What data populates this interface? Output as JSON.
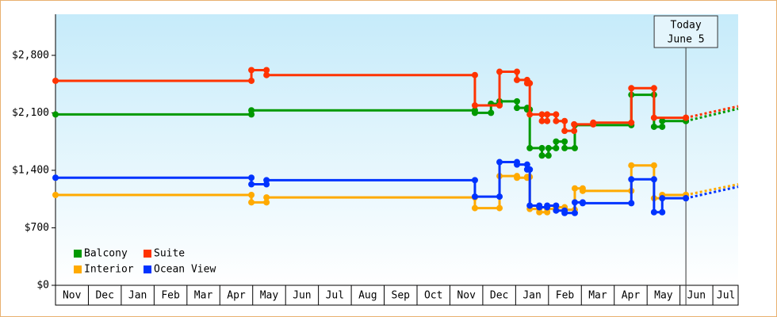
{
  "chart_data": {
    "type": "step-line",
    "xlim": [
      0,
      20.77
    ],
    "xticks": [
      {
        "value": 0.5,
        "label": "Nov"
      },
      {
        "value": 1.5,
        "label": "Dec"
      },
      {
        "value": 2.5,
        "label": "Jan"
      },
      {
        "value": 3.5,
        "label": "Feb"
      },
      {
        "value": 4.5,
        "label": "Mar"
      },
      {
        "value": 5.5,
        "label": "Apr"
      },
      {
        "value": 6.5,
        "label": "May"
      },
      {
        "value": 7.5,
        "label": "Jun"
      },
      {
        "value": 8.5,
        "label": "Jul"
      },
      {
        "value": 9.5,
        "label": "Aug"
      },
      {
        "value": 10.5,
        "label": "Sep"
      },
      {
        "value": 11.5,
        "label": "Oct"
      },
      {
        "value": 12.5,
        "label": "Nov"
      },
      {
        "value": 13.5,
        "label": "Dec"
      },
      {
        "value": 14.5,
        "label": "Jan"
      },
      {
        "value": 15.5,
        "label": "Feb"
      },
      {
        "value": 16.5,
        "label": "Mar"
      },
      {
        "value": 17.5,
        "label": "Apr"
      },
      {
        "value": 18.5,
        "label": "May"
      },
      {
        "value": 19.5,
        "label": "Jun"
      },
      {
        "value": 20.4,
        "label": "Jul"
      }
    ],
    "ylim": [
      0,
      3300
    ],
    "yticks": [
      {
        "value": 0,
        "label": "$0"
      },
      {
        "value": 700,
        "label": "$700"
      },
      {
        "value": 1400,
        "label": "$1,400"
      },
      {
        "value": 2100,
        "label": "$2,100"
      },
      {
        "value": 2800,
        "label": "$2,800"
      }
    ],
    "legend": "bottom-left",
    "annotation": {
      "x": 19.18,
      "text": [
        "Today",
        "June 5"
      ]
    },
    "series": [
      {
        "name": "Balcony",
        "color": "#009900",
        "x": [
          0,
          5.96,
          12.76,
          13.25,
          13.51,
          14.04,
          14.35,
          14.43,
          14.8,
          15.0,
          15.23,
          15.49,
          15.8,
          17.52,
          18.21,
          18.46,
          19.18
        ],
        "values": [
          2080,
          2130,
          2100,
          2210,
          2240,
          2160,
          2140,
          1670,
          1580,
          1670,
          1750,
          1670,
          1950,
          2320,
          1930,
          2000,
          2000
        ],
        "forecast": {
          "x": [
            19.18,
            20.77
          ],
          "values": [
            2000,
            2150
          ]
        }
      },
      {
        "name": "Suite",
        "color": "#ff3300",
        "x": [
          0,
          5.96,
          6.42,
          12.76,
          13.51,
          14.04,
          14.35,
          14.43,
          14.8,
          14.96,
          15.23,
          15.49,
          15.78,
          16.36,
          17.52,
          18.21,
          19.18
        ],
        "values": [
          2490,
          2620,
          2560,
          2190,
          2600,
          2500,
          2460,
          2080,
          2000,
          2080,
          2000,
          1880,
          1960,
          1980,
          2400,
          2040,
          2040
        ],
        "forecast": {
          "x": [
            19.18,
            20.77
          ],
          "values": [
            2040,
            2180
          ]
        }
      },
      {
        "name": "Interior",
        "color": "#ffaa00",
        "x": [
          0,
          5.96,
          6.42,
          12.76,
          13.51,
          14.04,
          14.35,
          14.43,
          14.72,
          14.96,
          15.23,
          15.49,
          15.8,
          16.04,
          17.52,
          18.21,
          18.46,
          19.18
        ],
        "values": [
          1100,
          1010,
          1070,
          940,
          1330,
          1310,
          1320,
          930,
          890,
          930,
          950,
          920,
          1180,
          1150,
          1460,
          1060,
          1100,
          1100
        ],
        "forecast": {
          "x": [
            19.18,
            20.77
          ],
          "values": [
            1100,
            1230
          ]
        }
      },
      {
        "name": "Ocean View",
        "color": "#0033ff",
        "x": [
          0,
          5.96,
          6.42,
          12.76,
          13.51,
          14.04,
          14.35,
          14.43,
          14.72,
          14.96,
          15.23,
          15.49,
          15.8,
          16.04,
          17.52,
          18.21,
          18.46,
          19.18
        ],
        "values": [
          1310,
          1230,
          1280,
          1080,
          1500,
          1470,
          1410,
          970,
          950,
          970,
          910,
          880,
          1010,
          1000,
          1290,
          890,
          1060,
          1060
        ],
        "forecast": {
          "x": [
            19.18,
            20.77
          ],
          "values": [
            1060,
            1200
          ]
        }
      }
    ]
  }
}
